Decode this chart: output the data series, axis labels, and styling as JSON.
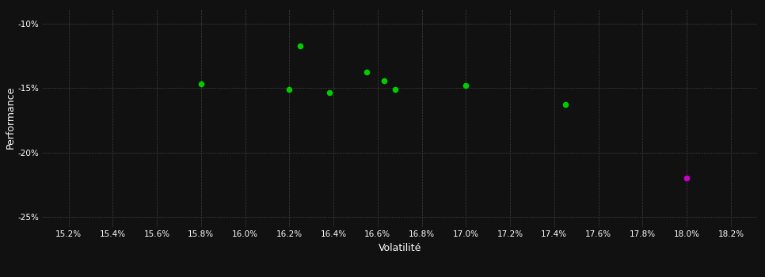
{
  "background_color": "#111111",
  "grid_color": "#404040",
  "text_color": "#ffffff",
  "xlabel": "Volatilité",
  "ylabel": "Performance",
  "xlim": [
    0.1508,
    0.1832
  ],
  "ylim": [
    -0.258,
    -0.088
  ],
  "xtick_values": [
    0.152,
    0.154,
    0.156,
    0.158,
    0.16,
    0.162,
    0.164,
    0.166,
    0.168,
    0.17,
    0.172,
    0.174,
    0.176,
    0.178,
    0.18,
    0.182
  ],
  "ytick_values": [
    -0.1,
    -0.15,
    -0.2,
    -0.25
  ],
  "green_dots": [
    [
      0.1625,
      -0.1175
    ],
    [
      0.158,
      -0.147
    ],
    [
      0.162,
      -0.151
    ],
    [
      0.1638,
      -0.1535
    ],
    [
      0.1655,
      -0.1375
    ],
    [
      0.1663,
      -0.144
    ],
    [
      0.1668,
      -0.151
    ],
    [
      0.17,
      -0.148
    ],
    [
      0.1745,
      -0.163
    ]
  ],
  "magenta_dot": [
    0.18,
    -0.22
  ],
  "dot_color_green": "#00cc00",
  "dot_color_magenta": "#cc00cc",
  "dot_size": 20
}
